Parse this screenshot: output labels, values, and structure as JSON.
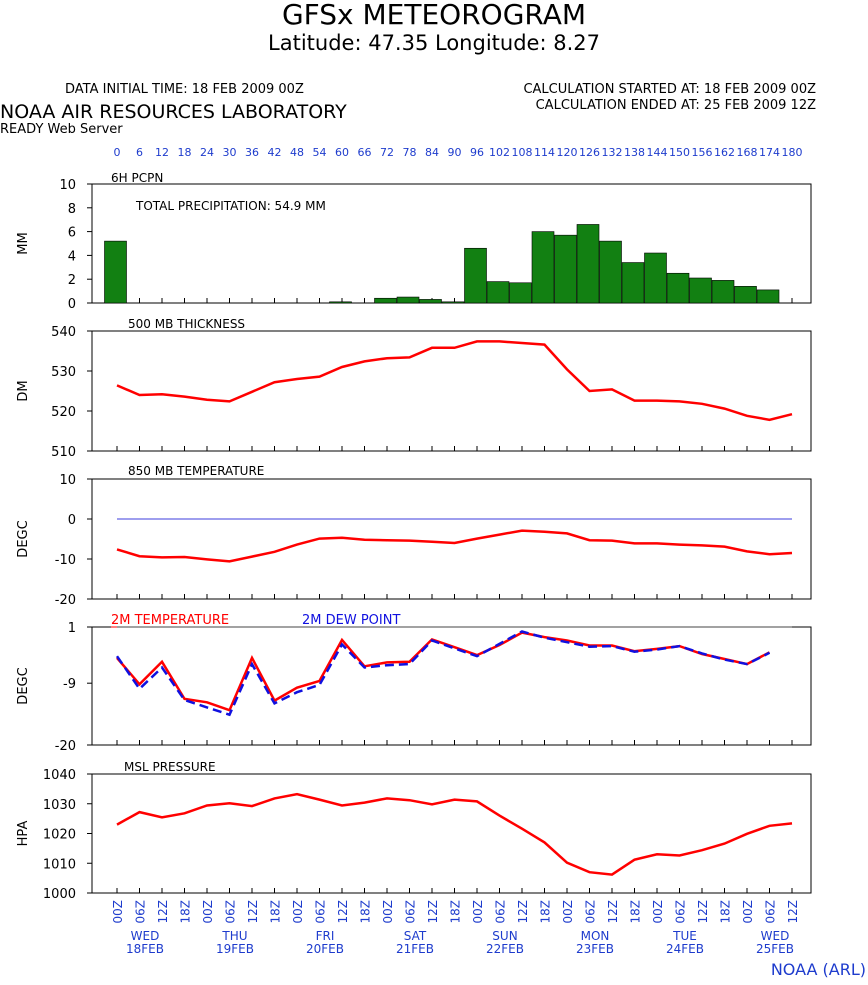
{
  "header": {
    "title": "GFSx METEOROGRAM",
    "subtitle": "Latitude: 47.35 Longitude:   8.27",
    "init_time": "DATA INITIAL TIME: 18 FEB 2009 00Z",
    "calc_started": "CALCULATION STARTED AT: 18 FEB 2009 00Z",
    "calc_ended": "CALCULATION ENDED AT: 25 FEB 2009 12Z",
    "lab": "NOAA AIR RESOURCES LABORATORY",
    "server": "READY Web Server"
  },
  "footer": "NOAA (ARL)",
  "colors": {
    "bar": "#128012",
    "line": "#ff0000",
    "dew": "#1010e0",
    "axis_text": "#1e3ccd",
    "zero_line": "#3c3cdc"
  },
  "chart_data": {
    "type": "meteogram",
    "forecast_hours": [
      "0",
      "6",
      "12",
      "18",
      "24",
      "30",
      "36",
      "42",
      "48",
      "54",
      "60",
      "66",
      "72",
      "78",
      "84",
      "90",
      "96",
      "102",
      "108",
      "114",
      "120",
      "126",
      "132",
      "138",
      "144",
      "150",
      "156",
      "162",
      "168",
      "174",
      "180"
    ],
    "time_labels": [
      "00Z",
      "06Z",
      "12Z",
      "18Z",
      "00Z",
      "06Z",
      "12Z",
      "18Z",
      "00Z",
      "06Z",
      "12Z",
      "18Z",
      "00Z",
      "06Z",
      "12Z",
      "18Z",
      "00Z",
      "06Z",
      "12Z",
      "18Z",
      "00Z",
      "06Z",
      "12Z",
      "18Z",
      "00Z",
      "06Z",
      "12Z",
      "18Z",
      "00Z",
      "06Z",
      "12Z"
    ],
    "day_labels": [
      {
        "index": 2,
        "day": "WED",
        "date": "18FEB"
      },
      {
        "index": 6,
        "day": "THU",
        "date": "19FEB"
      },
      {
        "index": 10,
        "day": "FRI",
        "date": "20FEB"
      },
      {
        "index": 14,
        "day": "SAT",
        "date": "21FEB"
      },
      {
        "index": 18,
        "day": "SUN",
        "date": "22FEB"
      },
      {
        "index": 22,
        "day": "MON",
        "date": "23FEB"
      },
      {
        "index": 26,
        "day": "TUE",
        "date": "24FEB"
      },
      {
        "index": 30,
        "day": "WED",
        "date": "25FEB"
      }
    ],
    "precipitation": {
      "title": "6H PCPN",
      "annotation": "TOTAL PRECIPITATION:  54.9 MM",
      "ylabel": "MM",
      "ylim": [
        0,
        10
      ],
      "ticks": [
        "0",
        "2",
        "4",
        "6",
        "8",
        "10"
      ],
      "values": [
        5.2,
        0,
        0,
        0,
        0,
        0,
        0,
        0,
        0,
        0,
        0.1,
        0,
        0.4,
        0.5,
        0.3,
        0.1,
        4.6,
        1.8,
        1.7,
        6.0,
        5.7,
        6.6,
        5.2,
        3.4,
        4.2,
        2.5,
        2.1,
        1.9,
        1.4,
        1.1
      ]
    },
    "thickness": {
      "title": "500 MB  THICKNESS",
      "ylabel": "DM",
      "ylim": [
        510,
        540
      ],
      "ticks": [
        "510",
        "520",
        "530",
        "540"
      ],
      "values": [
        526.4,
        524.0,
        524.2,
        523.6,
        522.8,
        522.4,
        524.8,
        527.2,
        528.0,
        528.6,
        531.0,
        532.4,
        533.2,
        533.4,
        535.8,
        535.8,
        537.4,
        537.4,
        537.0,
        536.6,
        530.4,
        525.0,
        525.4,
        522.6,
        522.6,
        522.4,
        521.8,
        520.6,
        518.8,
        517.8,
        519.2
      ]
    },
    "temp850": {
      "title": "850 MB  TEMPERATURE",
      "ylabel": "DEGC",
      "ylim": [
        -20,
        10
      ],
      "ticks": [
        "-20",
        "-10",
        "0",
        "10"
      ],
      "values": [
        -7.6,
        -9.3,
        -9.6,
        -9.5,
        -10.1,
        -10.6,
        -9.4,
        -8.2,
        -6.4,
        -4.9,
        -4.7,
        -5.2,
        -5.3,
        -5.4,
        -5.7,
        -6.0,
        -4.9,
        -3.9,
        -2.9,
        -3.2,
        -3.6,
        -5.3,
        -5.4,
        -6.1,
        -6.1,
        -6.4,
        -6.6,
        -6.9,
        -8.1,
        -8.8,
        -8.5
      ]
    },
    "temp2m": {
      "title_temp": "2M TEMPERATURE",
      "title_dew": "2M   DEW POINT",
      "ylabel": "DEGC",
      "ylim": [
        -20,
        1
      ],
      "ticks": [
        "-20",
        "-9",
        "1"
      ],
      "temperature": [
        -4.5,
        -9.2,
        -5.2,
        -11.8,
        -12.4,
        -13.8,
        -4.5,
        -12.1,
        -9.8,
        -8.6,
        -1.3,
        -6.0,
        -5.3,
        -5.2,
        -1.2,
        -2.6,
        -4.0,
        -2.2,
        0.0,
        -0.8,
        -1.4,
        -2.3,
        -2.3,
        -3.3,
        -2.9,
        -2.4,
        -3.8,
        -4.7,
        -5.6,
        -3.5
      ],
      "dew_point": [
        -4.2,
        -10.0,
        -6.2,
        -12.0,
        -13.3,
        -14.6,
        -5.6,
        -12.6,
        -10.6,
        -9.3,
        -2.1,
        -6.2,
        -5.8,
        -5.6,
        -1.4,
        -2.8,
        -4.2,
        -2.0,
        0.2,
        -0.9,
        -1.7,
        -2.5,
        -2.4,
        -3.4,
        -3.0,
        -2.4,
        -3.7,
        -4.8,
        -5.6,
        -3.6
      ]
    },
    "pressure": {
      "title": "MSL PRESSURE",
      "ylabel": "HPA",
      "ylim": [
        1000,
        1040
      ],
      "ticks": [
        "1000",
        "1010",
        "1020",
        "1030",
        "1040"
      ],
      "values": [
        1023.0,
        1027.2,
        1025.4,
        1026.8,
        1029.4,
        1030.2,
        1029.2,
        1031.8,
        1033.2,
        1031.4,
        1029.4,
        1030.4,
        1031.8,
        1031.2,
        1029.8,
        1031.4,
        1030.8,
        1026.0,
        1021.6,
        1017.0,
        1010.2,
        1007.0,
        1006.2,
        1011.2,
        1013.0,
        1012.6,
        1014.4,
        1016.6,
        1019.9,
        1022.6,
        1023.4
      ]
    }
  }
}
